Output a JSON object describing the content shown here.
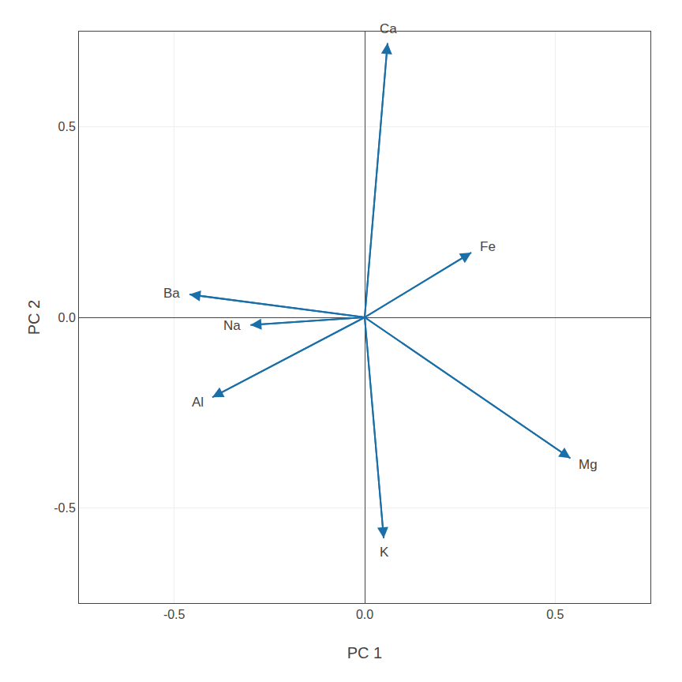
{
  "chart_data": {
    "type": "arrows",
    "x": [
      0.06,
      0.28,
      0.54,
      0.05,
      -0.3,
      -0.46,
      -0.4
    ],
    "values": [
      0.72,
      0.17,
      -0.37,
      -0.58,
      -0.02,
      0.06,
      -0.21
    ],
    "annotations": [
      "Ca",
      "Fe",
      "Mg",
      "K",
      "Na",
      "Ba",
      "Al"
    ],
    "color": "#1B6FA8",
    "xlabel": "PC 1",
    "ylabel": "PC 2",
    "xlim": [
      -0.75,
      0.75
    ],
    "ylim": [
      -0.75,
      0.75
    ],
    "xticks": [
      -0.5,
      {
        "value": 0,
        "label": "0.0"
      },
      0.5
    ],
    "yticks": [
      -0.5,
      {
        "value": 0,
        "label": "0.0"
      },
      0.5
    ],
    "grid": true
  }
}
